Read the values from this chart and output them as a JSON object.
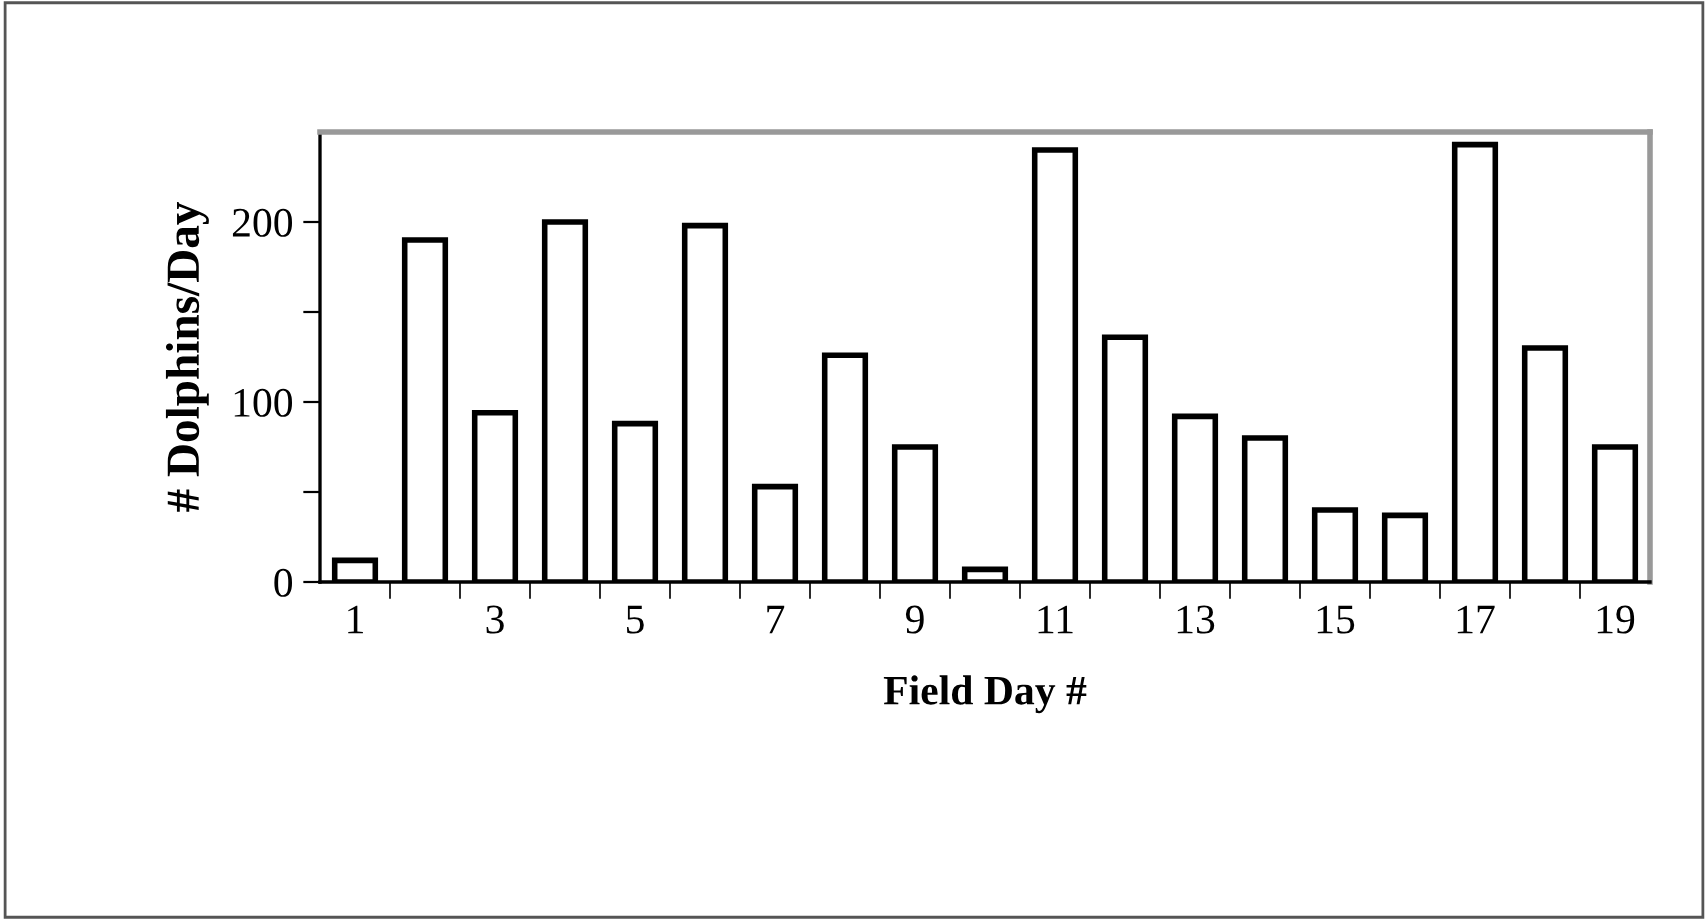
{
  "chart_data": {
    "type": "bar",
    "xlabel": "Field Day #",
    "ylabel": "# Dolphins/Day",
    "categories": [
      "1",
      null,
      "3",
      null,
      "5",
      null,
      "7",
      null,
      "9",
      null,
      "11",
      null,
      "13",
      null,
      "15",
      null,
      "17",
      null,
      "19"
    ],
    "values": [
      12,
      190,
      94,
      200,
      88,
      198,
      53,
      126,
      75,
      7,
      240,
      136,
      92,
      80,
      40,
      37,
      243,
      130,
      75
    ],
    "color": "#ffffff",
    "ylim": [
      0,
      250
    ],
    "yticks": [
      0,
      {
        "value": 50,
        "label": null
      },
      100,
      {
        "value": 150,
        "label": null
      },
      200
    ],
    "grid": false,
    "legend": false
  }
}
